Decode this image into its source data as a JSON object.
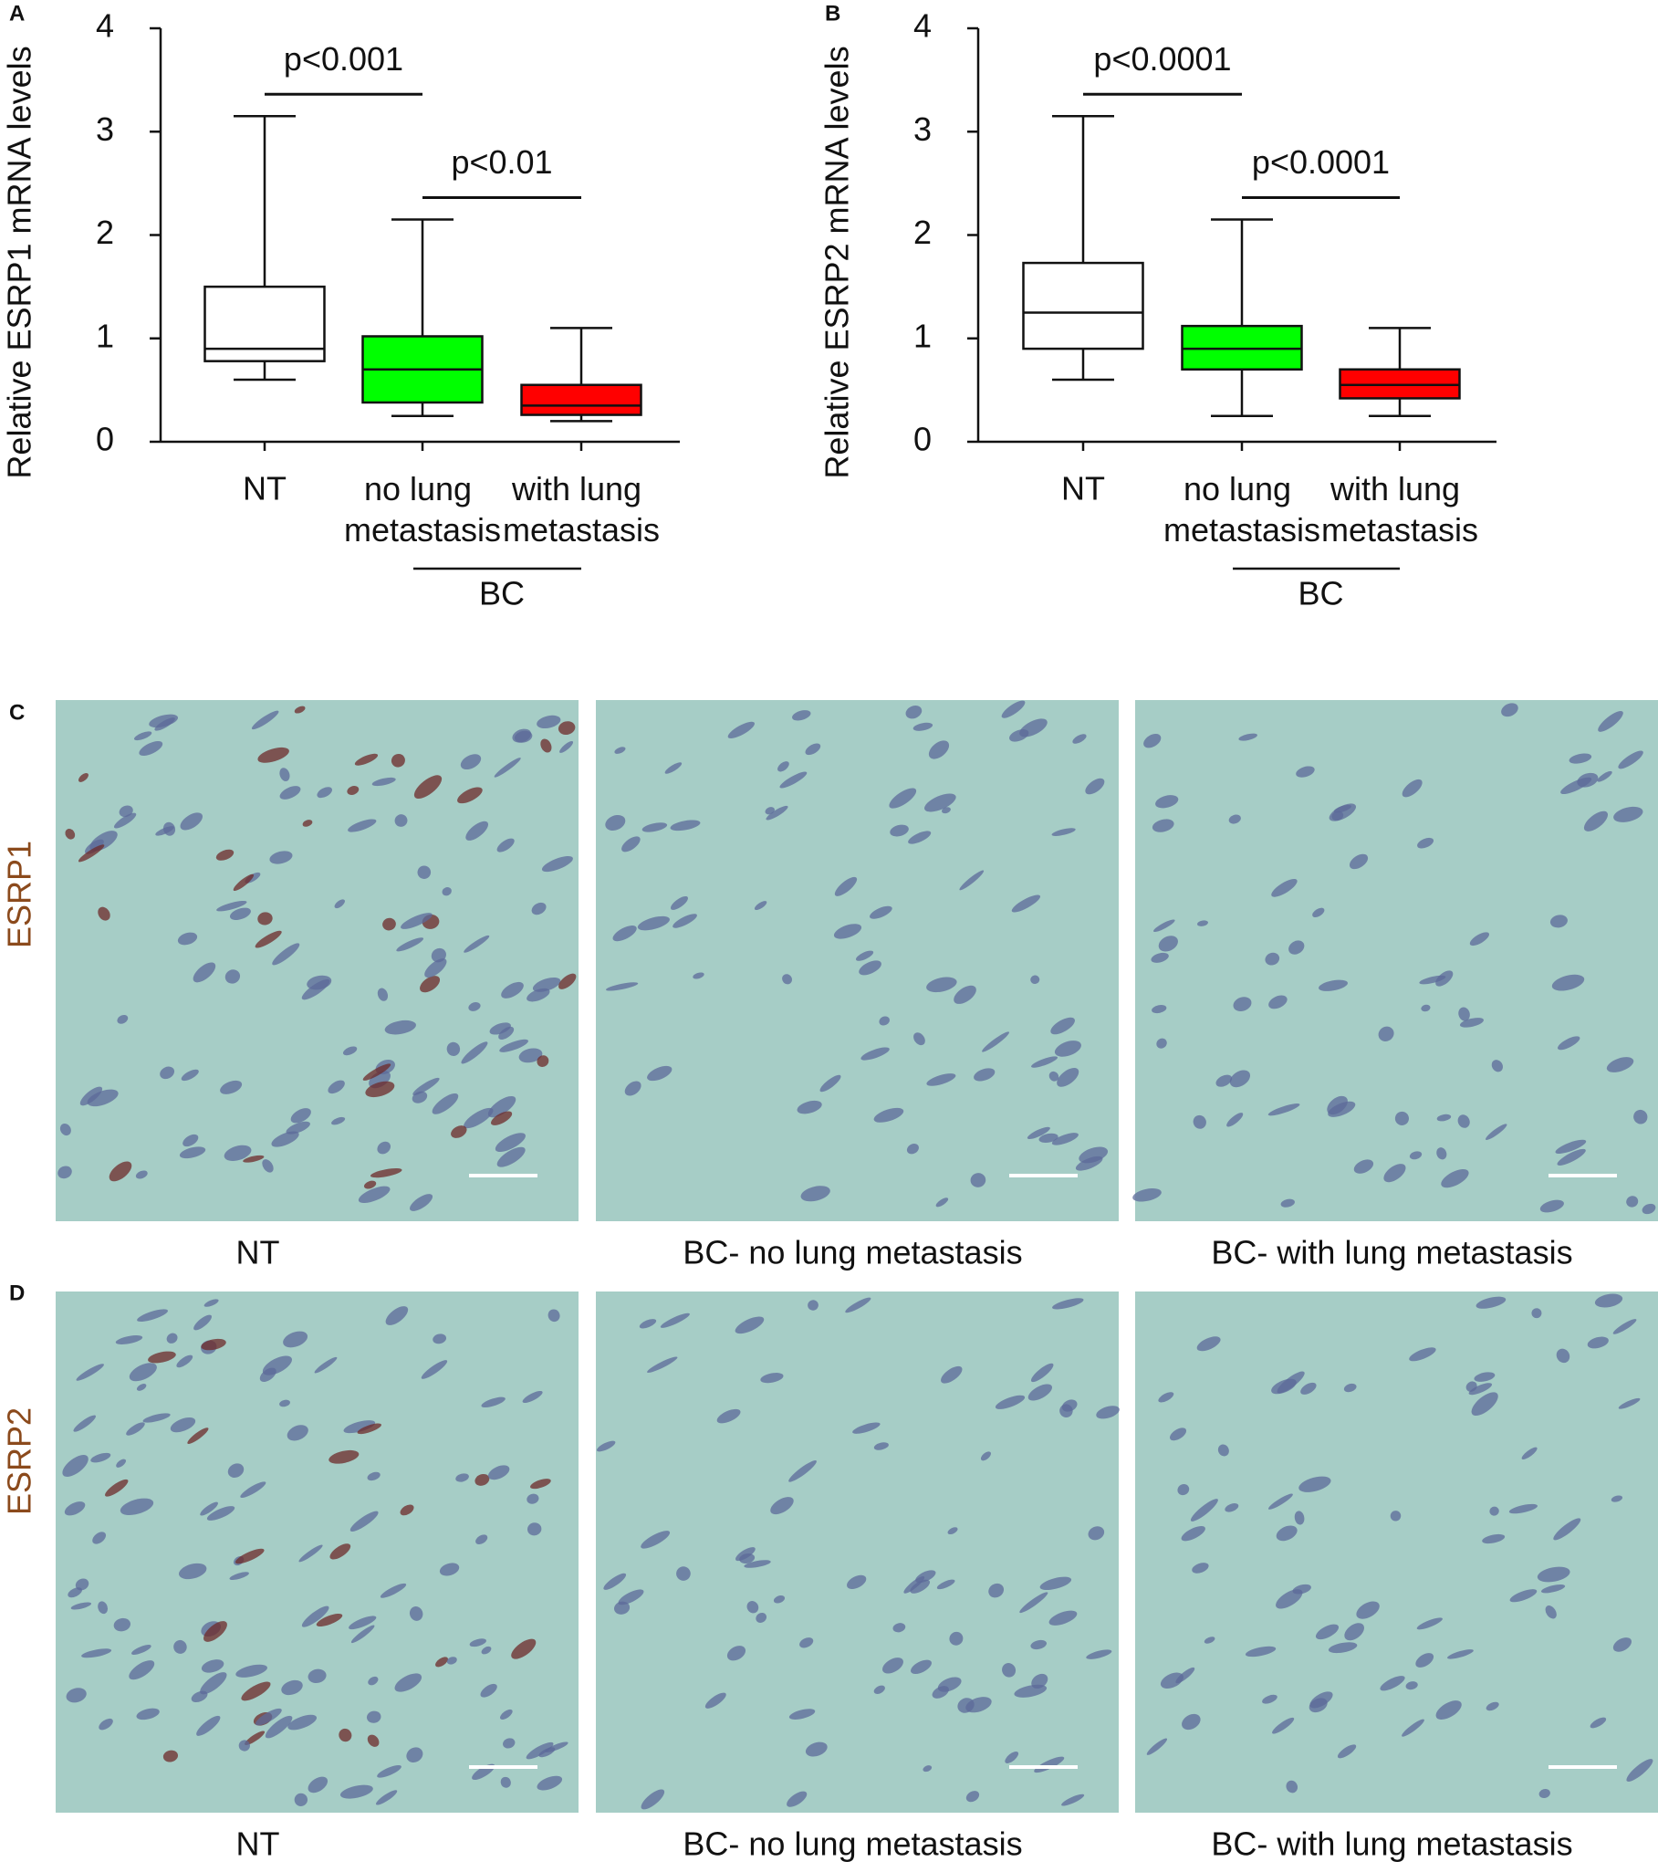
{
  "chart_data": [
    {
      "type": "box",
      "panel": "A",
      "y_label": "Relative ESRP1 mRNA levels",
      "categories": [
        "NT",
        "no lung metastasis",
        "with lung metastasis"
      ],
      "colors": [
        "#ffffff",
        "#00ff00",
        "#ff0000"
      ],
      "boxes": [
        {
          "min": 0.6,
          "q1": 0.78,
          "median": 0.9,
          "q3": 1.5,
          "max": 3.15
        },
        {
          "min": 0.25,
          "q1": 0.38,
          "median": 0.7,
          "q3": 1.02,
          "max": 2.15
        },
        {
          "min": 0.2,
          "q1": 0.26,
          "median": 0.35,
          "q3": 0.55,
          "max": 1.1
        }
      ],
      "ylim": [
        0,
        4
      ],
      "yticks": [
        0,
        1,
        2,
        3,
        4
      ],
      "group": {
        "label": "BC",
        "categories": [
          "no lung metastasis",
          "with lung metastasis"
        ]
      },
      "annotations": [
        {
          "text": "p<0.001",
          "between": [
            "NT",
            "no lung metastasis"
          ]
        },
        {
          "text": "p<0.01",
          "between": [
            "no lung metastasis",
            "with lung metastasis"
          ]
        }
      ]
    },
    {
      "type": "box",
      "panel": "B",
      "y_label": "Relative ESRP2 mRNA levels",
      "categories": [
        "NT",
        "no lung metastasis",
        "with lung metastasis"
      ],
      "colors": [
        "#ffffff",
        "#00ff00",
        "#ff0000"
      ],
      "boxes": [
        {
          "min": 0.6,
          "q1": 0.9,
          "median": 1.25,
          "q3": 1.73,
          "max": 3.15
        },
        {
          "min": 0.25,
          "q1": 0.7,
          "median": 0.9,
          "q3": 1.12,
          "max": 2.15
        },
        {
          "min": 0.25,
          "q1": 0.42,
          "median": 0.55,
          "q3": 0.7,
          "max": 1.1
        }
      ],
      "ylim": [
        0,
        4
      ],
      "yticks": [
        0,
        1,
        2,
        3,
        4
      ],
      "group": {
        "label": "BC",
        "categories": [
          "no lung metastasis",
          "with lung metastasis"
        ]
      },
      "annotations": [
        {
          "text": "p<0.0001",
          "between": [
            "NT",
            "no lung metastasis"
          ]
        },
        {
          "text": "p<0.0001",
          "between": [
            "no lung metastasis",
            "with lung metastasis"
          ]
        }
      ]
    }
  ],
  "images": [
    {
      "panel": "C",
      "row_label": "ESRP1",
      "captions": [
        "NT",
        "BC- no lung metastasis",
        "BC- with lung metastasis"
      ]
    },
    {
      "panel": "D",
      "row_label": "ESRP2",
      "captions": [
        "NT",
        "BC- no lung metastasis",
        "BC- with lung metastasis"
      ]
    }
  ]
}
